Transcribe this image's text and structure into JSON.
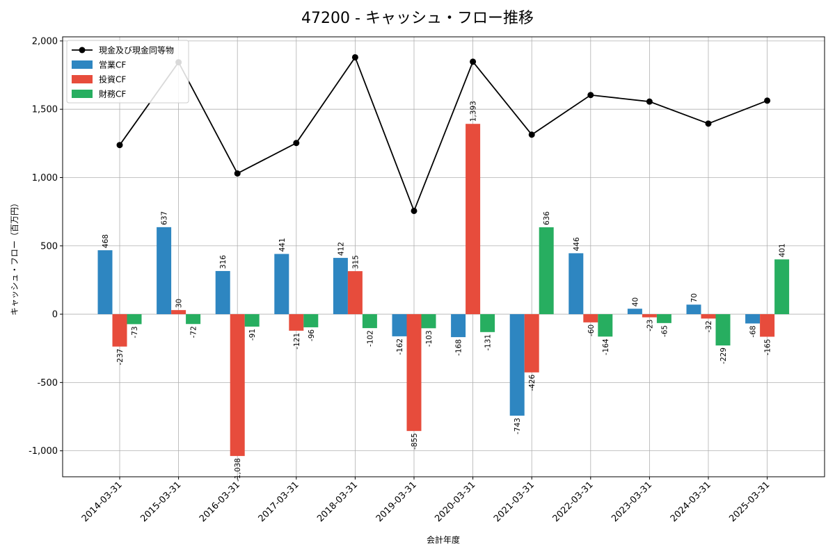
{
  "chart_data": {
    "type": "bar",
    "title": "47200 - キャッシュ・フロー推移",
    "xlabel": "会計年度",
    "ylabel": "キャッシュ・フロー（百万円）",
    "categories": [
      "2014-03-31",
      "2015-03-31",
      "2016-03-31",
      "2017-03-31",
      "2018-03-31",
      "2019-03-31",
      "2020-03-31",
      "2021-03-31",
      "2022-03-31",
      "2023-03-31",
      "2024-03-31",
      "2025-03-31"
    ],
    "ylim": [
      -1190,
      2030
    ],
    "yticks": [
      -1000,
      -500,
      0,
      500,
      1000,
      1500,
      2000
    ],
    "ytick_labels": [
      "-1,000",
      "-500",
      "0",
      "500",
      "1,000",
      "1,500",
      "2,000"
    ],
    "grid": true,
    "legend_position": "top-left",
    "series": [
      {
        "name": "営業CF",
        "type": "bar",
        "color": "#2e86c1",
        "values": [
          468,
          637,
          316,
          441,
          412,
          -162,
          -168,
          -743,
          446,
          40,
          70,
          -68
        ],
        "labels": [
          "468",
          "637",
          "316",
          "441",
          "412",
          "-162",
          "-168",
          "-743",
          "446",
          "40",
          "70",
          "-68"
        ]
      },
      {
        "name": "投資CF",
        "type": "bar",
        "color": "#e74c3c",
        "values": [
          -237,
          30,
          -1038,
          -121,
          315,
          -855,
          1393,
          -426,
          -60,
          -23,
          -32,
          -165
        ],
        "labels": [
          "-237",
          "30",
          "-1,038",
          "-121",
          "315",
          "-855",
          "1,393",
          "-426",
          "-60",
          "-23",
          "-32",
          "-165"
        ]
      },
      {
        "name": "財務CF",
        "type": "bar",
        "color": "#27ae60",
        "values": [
          -73,
          -72,
          -91,
          -96,
          -102,
          -103,
          -131,
          636,
          -164,
          -65,
          -229,
          401
        ],
        "labels": [
          "-73",
          "-72",
          "-91",
          "-96",
          "-102",
          "-103",
          "-131",
          "636",
          "-164",
          "-65",
          "-229",
          "401"
        ]
      },
      {
        "name": "現金及び現金同等物",
        "type": "line",
        "color": "#000000",
        "values": [
          1238,
          1844,
          1030,
          1253,
          1880,
          756,
          1848,
          1314,
          1604,
          1556,
          1395,
          1563
        ]
      }
    ]
  }
}
